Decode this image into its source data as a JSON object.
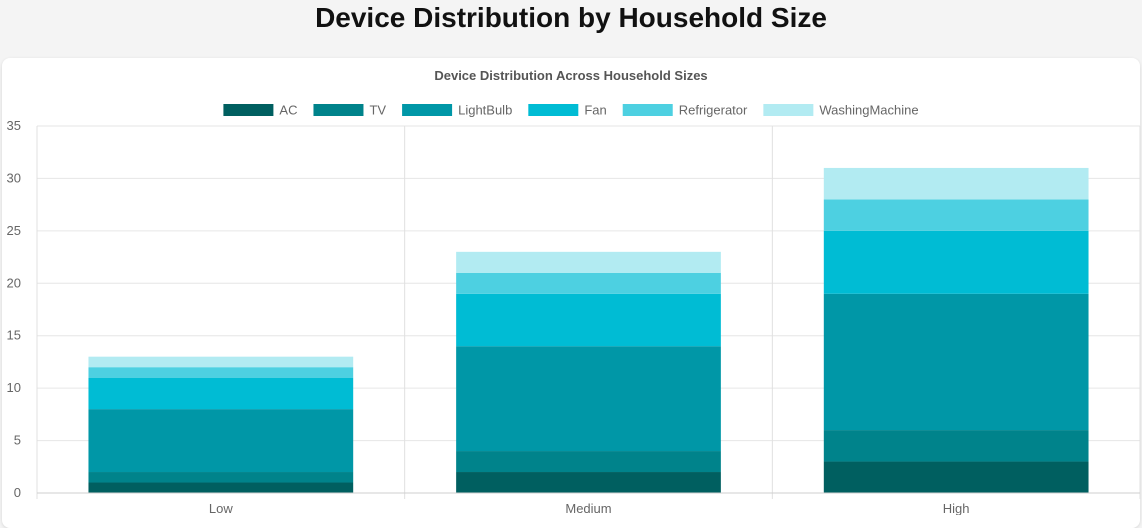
{
  "page": {
    "title": "Device Distribution by Household Size"
  },
  "chart_data": {
    "type": "bar",
    "stacked": true,
    "title": "Device Distribution Across Household Sizes",
    "categories": [
      "Low",
      "Medium",
      "High"
    ],
    "series": [
      {
        "name": "AC",
        "color": "#005f60",
        "values": [
          1,
          2,
          3
        ]
      },
      {
        "name": "TV",
        "color": "#00838b",
        "values": [
          1,
          2,
          3
        ]
      },
      {
        "name": "LightBulb",
        "color": "#0097a7",
        "values": [
          6,
          10,
          13
        ]
      },
      {
        "name": "Fan",
        "color": "#00bcd4",
        "values": [
          3,
          5,
          6
        ]
      },
      {
        "name": "Refrigerator",
        "color": "#4dd0e1",
        "values": [
          1,
          2,
          3
        ]
      },
      {
        "name": "WashingMachine",
        "color": "#b2ebf2",
        "values": [
          1,
          2,
          3
        ]
      }
    ],
    "ylim": [
      0,
      35
    ],
    "yticks": [
      0,
      5,
      10,
      15,
      20,
      25,
      30,
      35
    ],
    "grid": true,
    "legend": "top"
  }
}
